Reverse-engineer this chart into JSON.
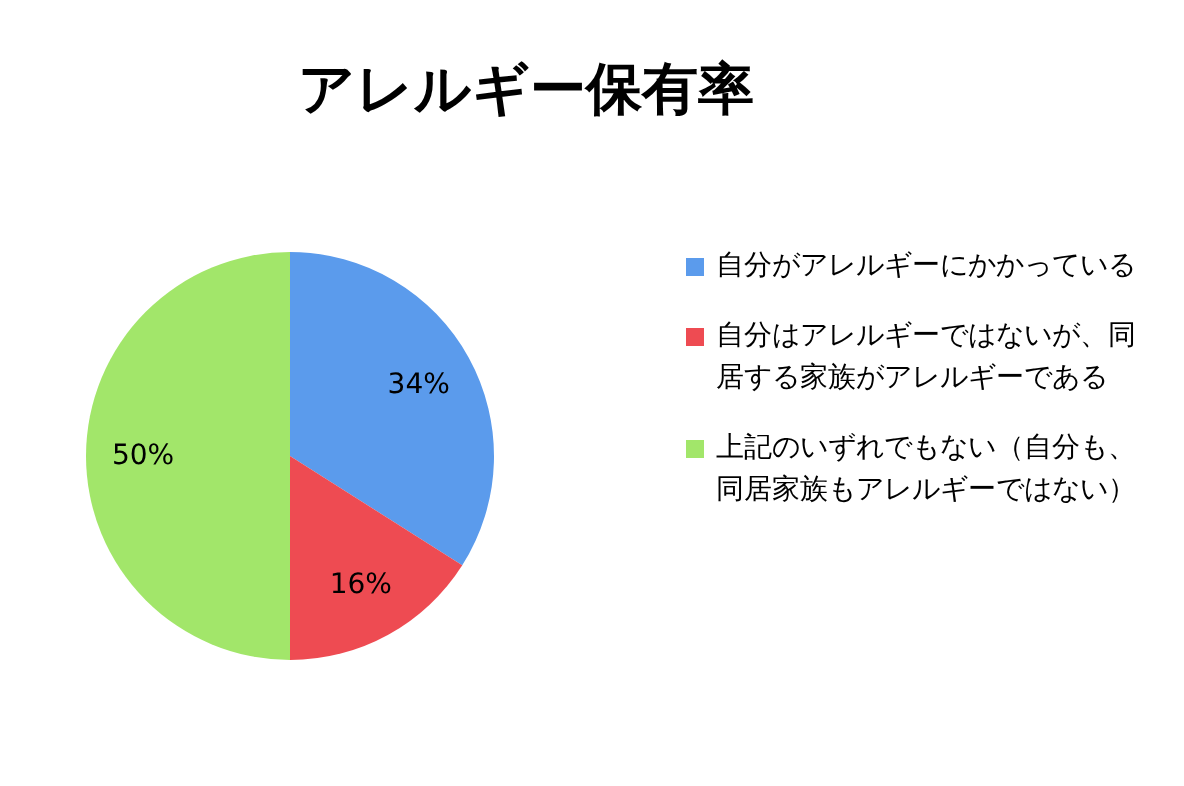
{
  "chart_data": {
    "type": "pie",
    "title": "アレルギー保有率",
    "categories": [
      "自分がアレルギーにかかっている",
      "自分はアレルギーではないが、同居する家族がアレルギーである",
      "上記のいずれでもない（自分も、同居家族もアレルギーではない）"
    ],
    "values": [
      34,
      16,
      50
    ],
    "colors": [
      "#5b9bec",
      "#ee4b52",
      "#a2e66a"
    ],
    "value_labels": [
      "34%",
      "16%",
      "50%"
    ],
    "legend": "right"
  }
}
